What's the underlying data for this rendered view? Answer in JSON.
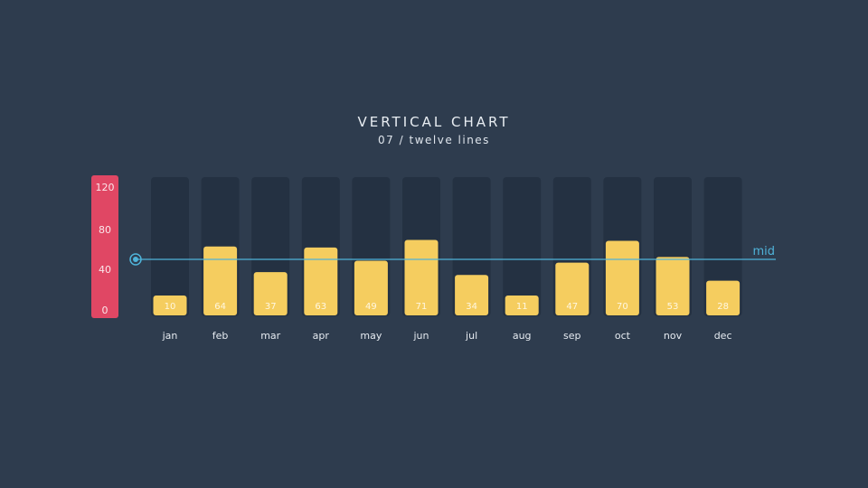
{
  "header": {
    "title": "VERTICAL CHART",
    "subtitle": "07 / twelve lines"
  },
  "colors": {
    "background": "#2e3c4e",
    "track": "#243142",
    "bar": "#f5cd5f",
    "axis": "#e04764",
    "reference": "#4fb3d9"
  },
  "chart_data": {
    "type": "bar",
    "categories": [
      "jan",
      "feb",
      "mar",
      "apr",
      "may",
      "jun",
      "jul",
      "aug",
      "sep",
      "oct",
      "nov",
      "dec"
    ],
    "values": [
      10,
      64,
      37,
      63,
      49,
      71,
      34,
      11,
      47,
      70,
      53,
      28
    ],
    "y_ticks": [
      "120",
      "80",
      "40",
      "0"
    ],
    "ylim": [
      0,
      120
    ],
    "reference_line": {
      "label": "mid",
      "value": 45
    },
    "grid": false,
    "legend": "none",
    "data_labels": true
  }
}
